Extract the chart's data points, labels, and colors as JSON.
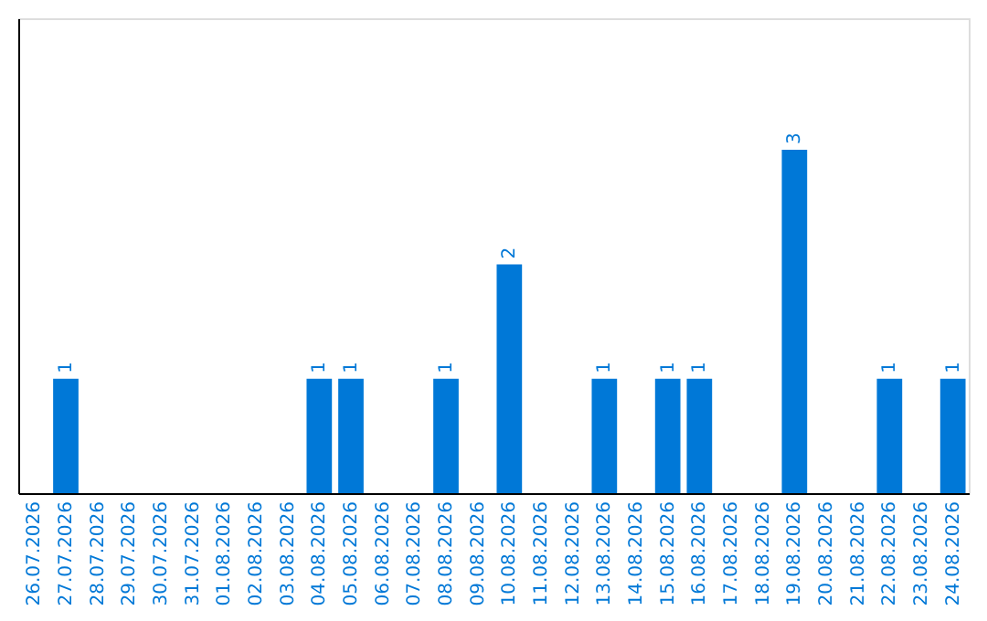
{
  "chart_data": {
    "type": "bar",
    "categories": [
      "26.07.2026",
      "27.07.2026",
      "28.07.2026",
      "29.07.2026",
      "30.07.2026",
      "31.07.2026",
      "01.08.2026",
      "02.08.2026",
      "03.08.2026",
      "04.08.2026",
      "05.08.2026",
      "06.08.2026",
      "07.08.2026",
      "08.08.2026",
      "09.08.2026",
      "10.08.2026",
      "11.08.2026",
      "12.08.2026",
      "13.08.2026",
      "14.08.2026",
      "15.08.2026",
      "16.08.2026",
      "17.08.2026",
      "18.08.2026",
      "19.08.2026",
      "20.08.2026",
      "21.08.2026",
      "22.08.2026",
      "23.08.2026",
      "24.08.2026"
    ],
    "values": [
      0,
      1,
      0,
      0,
      0,
      0,
      0,
      0,
      0,
      1,
      1,
      0,
      0,
      1,
      0,
      2,
      0,
      0,
      1,
      0,
      1,
      1,
      0,
      0,
      3,
      0,
      0,
      1,
      0,
      1
    ],
    "value_labels": [
      null,
      "1",
      null,
      null,
      null,
      null,
      null,
      null,
      null,
      "1",
      "1",
      null,
      null,
      "1",
      null,
      "2",
      null,
      null,
      "1",
      null,
      "1",
      "1",
      null,
      null,
      "3",
      null,
      null,
      "1",
      null,
      "1"
    ],
    "color": "#0078d7",
    "ylim": [
      0,
      4.15
    ],
    "tick_labels": "x",
    "grid": false
  }
}
